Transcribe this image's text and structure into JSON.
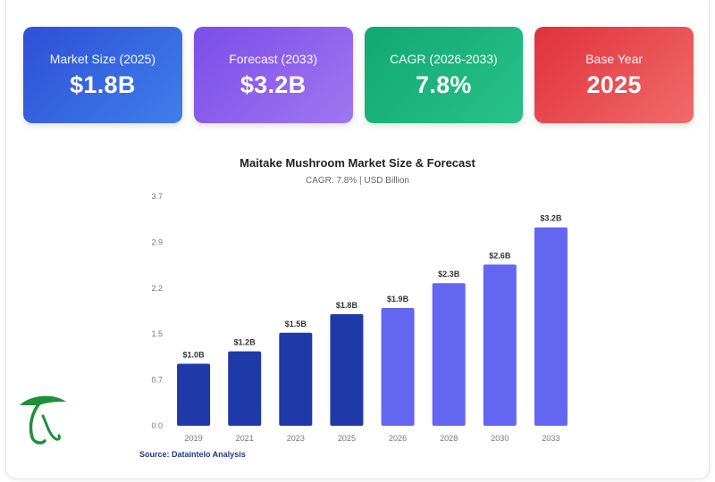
{
  "cards": [
    {
      "label": "Market Size (2025)",
      "value": "$1.8B",
      "color": "#3462e0"
    },
    {
      "label": "Forecast (2033)",
      "value": "$3.2B",
      "color": "#8b5cf6"
    },
    {
      "label": "CAGR (2026-2033)",
      "value": "7.8%",
      "color": "#16b07c"
    },
    {
      "label": "Base Year",
      "value": "2025",
      "color": "#e8474c"
    }
  ],
  "chart_data": {
    "type": "bar",
    "title": "Maitake Mushroom Market Size & Forecast",
    "subtitle": "CAGR: 7.8% | USD Billion",
    "categories": [
      "2019",
      "2021",
      "2023",
      "2025",
      "2026",
      "2028",
      "2030",
      "2033"
    ],
    "values": [
      1.0,
      1.2,
      1.5,
      1.8,
      1.9,
      2.3,
      2.6,
      3.2
    ],
    "data_labels": [
      "$1.0B",
      "$1.2B",
      "$1.5B",
      "$1.8B",
      "$1.9B",
      "$2.3B",
      "$2.6B",
      "$3.2B"
    ],
    "y_ticks": [
      "0.0",
      "0.7",
      "1.5",
      "2.2",
      "2.9",
      "3.7"
    ],
    "ylim": [
      0,
      3.7
    ],
    "historical_color": "#1e3aa8",
    "forecast_color": "#6366f1",
    "historical_count": 4,
    "grid": false
  },
  "source": "Source: Dataintelo Analysis",
  "logo_icon": "mushroom-logo-icon"
}
